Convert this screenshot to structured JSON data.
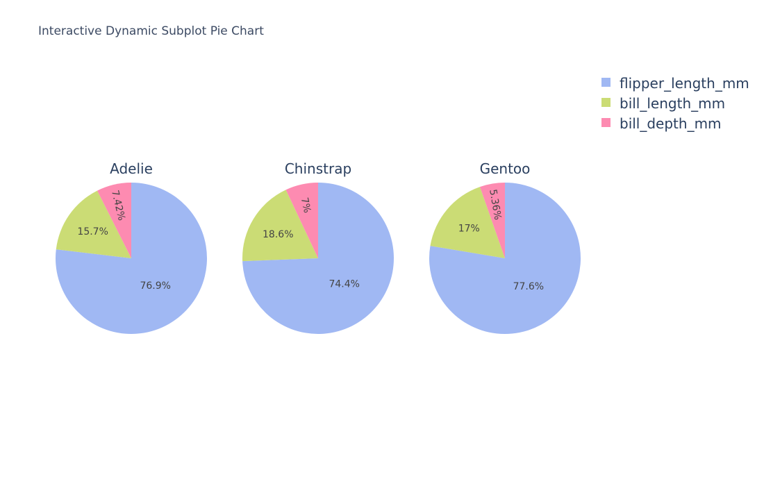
{
  "title": "Interactive Dynamic Subplot Pie Chart",
  "legend": [
    {
      "label": "flipper_length_mm",
      "color": "#a0b8f3"
    },
    {
      "label": "bill_length_mm",
      "color": "#cbdc75"
    },
    {
      "label": "bill_depth_mm",
      "color": "#fd8bb1"
    }
  ],
  "chart_data": [
    {
      "type": "pie",
      "title": "Adelie",
      "categories": [
        "flipper_length_mm",
        "bill_length_mm",
        "bill_depth_mm"
      ],
      "values": [
        76.9,
        15.7,
        7.42
      ],
      "labels": [
        "76.9%",
        "15.7%",
        "7.42%"
      ]
    },
    {
      "type": "pie",
      "title": "Chinstrap",
      "categories": [
        "flipper_length_mm",
        "bill_length_mm",
        "bill_depth_mm"
      ],
      "values": [
        74.4,
        18.6,
        7.0
      ],
      "labels": [
        "74.4%",
        "18.6%",
        "7%"
      ]
    },
    {
      "type": "pie",
      "title": "Gentoo",
      "categories": [
        "flipper_length_mm",
        "bill_length_mm",
        "bill_depth_mm"
      ],
      "values": [
        77.6,
        17.0,
        5.36
      ],
      "labels": [
        "77.6%",
        "17%",
        "5.36%"
      ]
    }
  ]
}
